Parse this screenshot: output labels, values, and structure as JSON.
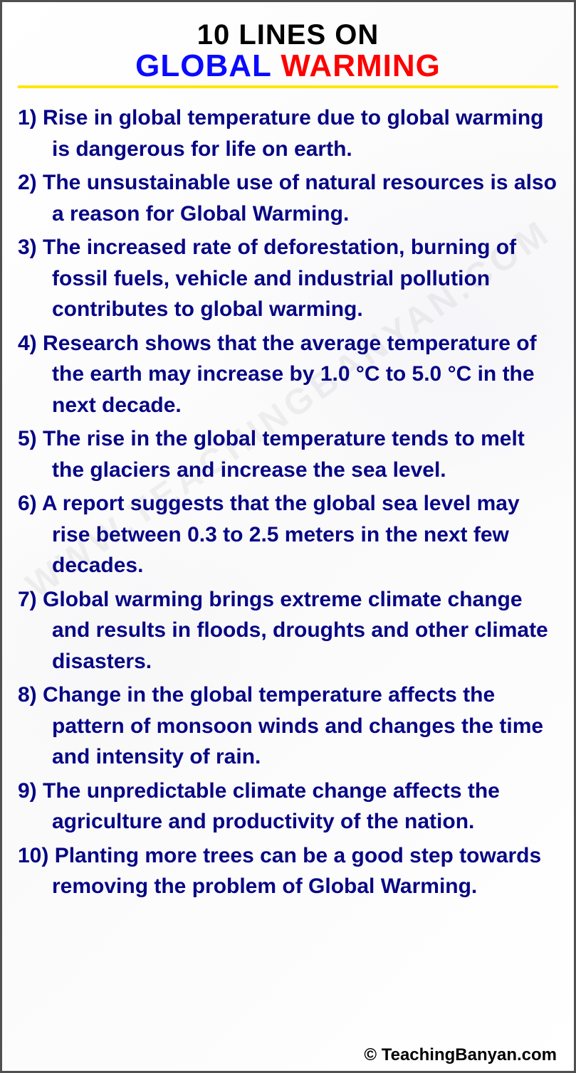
{
  "title": {
    "line1": "10 LINES ON",
    "global_text": "GLOBAL",
    "warming_text": "WARMING",
    "global_color": "#0a0aff",
    "warming_color": "#ff0000",
    "underline_color": "#ffe600"
  },
  "text_color": "#070785",
  "watermark_text": "WWW.TEACHINGBANYAN.COM",
  "items": [
    {
      "n": "1)",
      "t": "Rise in global temperature due to global warming is dangerous for life on earth."
    },
    {
      "n": "2)",
      "t": "The unsustainable use of natural resources is also a reason for Global Warming."
    },
    {
      "n": "3)",
      "t": "The increased rate of deforestation, burning of fossil fuels, vehicle and industrial pollution contributes to global warming."
    },
    {
      "n": "4)",
      "t": "Research shows that the average temperature of the earth may increase by 1.0 °C to 5.0 °C in the next decade."
    },
    {
      "n": "5)",
      "t": "The rise in the global temperature tends to melt the glaciers and increase the sea level."
    },
    {
      "n": "6)",
      "t": "A report suggests that the global sea level may rise between 0.3 to 2.5 meters in the next few decades."
    },
    {
      "n": "7)",
      "t": "Global warming brings extreme climate change and results in floods, droughts and other climate disasters."
    },
    {
      "n": "8)",
      "t": "Change in the global temperature affects the pattern of monsoon winds and changes the time and intensity of rain."
    },
    {
      "n": "9)",
      "t": "The unpredictable climate change affects the agriculture and productivity of the nation."
    },
    {
      "n": "10)",
      "t": "Planting more trees can be a good step towards removing the problem of Global Warming."
    }
  ],
  "footer_text": "© TeachingBanyan.com"
}
